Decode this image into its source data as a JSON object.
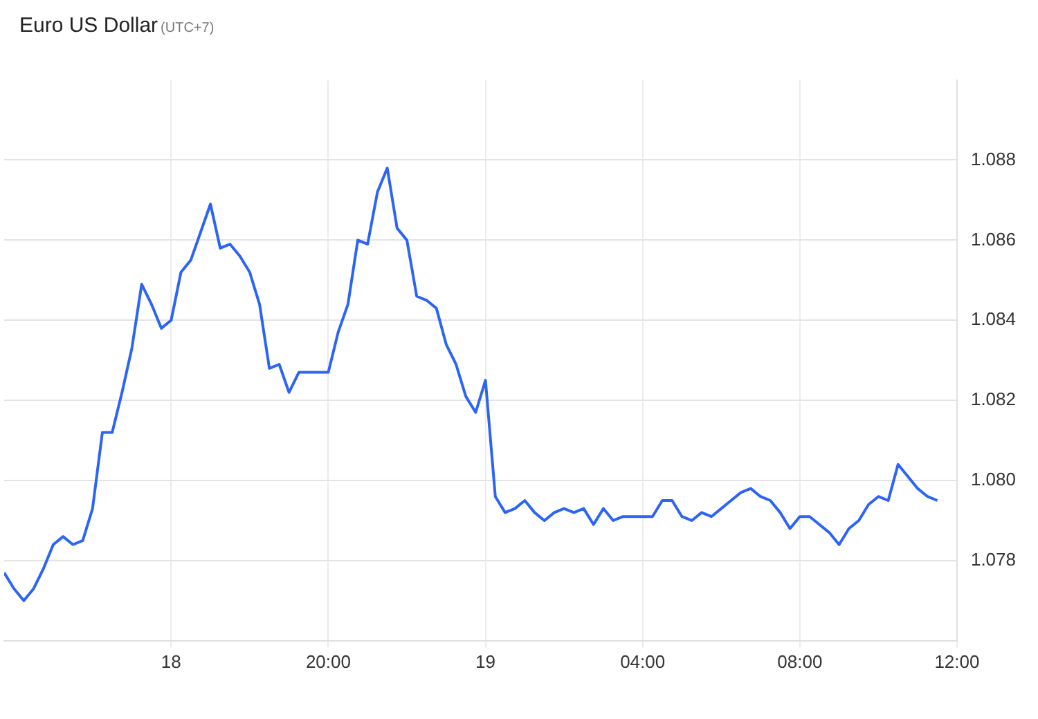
{
  "chart_data": {
    "type": "line",
    "title": "Euro US Dollar",
    "subtitle": "(UTC+7)",
    "categories": [
      null,
      null,
      null,
      null,
      null,
      null,
      null,
      null,
      null,
      null,
      null,
      null,
      null,
      null,
      null,
      null,
      null,
      "18",
      null,
      null,
      null,
      null,
      null,
      null,
      null,
      null,
      null,
      null,
      null,
      null,
      null,
      null,
      null,
      "20:00",
      null,
      null,
      null,
      null,
      null,
      null,
      null,
      null,
      null,
      null,
      null,
      null,
      null,
      null,
      null,
      "19",
      null,
      null,
      null,
      null,
      null,
      null,
      null,
      null,
      null,
      null,
      null,
      null,
      null,
      null,
      null,
      "04:00",
      null,
      null,
      null,
      null,
      null,
      null,
      null,
      null,
      null,
      null,
      null,
      null,
      null,
      null,
      null,
      "08:00",
      null,
      null,
      null,
      null,
      null,
      null,
      null,
      null,
      null,
      null,
      null,
      null,
      null,
      null,
      null,
      "12:00"
    ],
    "series": [
      {
        "color": "#2c64f5",
        "values": [
          1.0777,
          1.0773,
          1.077,
          1.0773,
          1.0778,
          1.0784,
          1.0786,
          1.0784,
          1.0785,
          1.0793,
          1.0812,
          1.0812,
          1.0822,
          1.0833,
          1.0849,
          1.0844,
          1.0838,
          1.084,
          1.0852,
          1.0855,
          1.0862,
          1.0869,
          1.0858,
          1.0859,
          1.0856,
          1.0852,
          1.0844,
          1.0828,
          1.0829,
          1.0822,
          1.0827,
          1.0827,
          1.0827,
          1.0827,
          1.0837,
          1.0844,
          1.086,
          1.0859,
          1.0872,
          1.0878,
          1.0863,
          1.086,
          1.0846,
          1.0845,
          1.0843,
          1.0834,
          1.0829,
          1.0821,
          1.0817,
          1.0825,
          1.0796,
          1.0792,
          1.0793,
          1.0795,
          1.0792,
          1.079,
          1.0792,
          1.0793,
          1.0792,
          1.0793,
          1.0789,
          1.0793,
          1.079,
          1.0791,
          1.0791,
          1.0791,
          1.0791,
          1.0795,
          1.0795,
          1.0791,
          1.079,
          1.0792,
          1.0791,
          1.0793,
          1.0795,
          1.0797,
          1.0798,
          1.0796,
          1.0795,
          1.0792,
          1.0788,
          1.0791,
          1.0791,
          1.0789,
          1.0787,
          1.0784,
          1.0788,
          1.079,
          1.0794,
          1.0796,
          1.0795,
          1.0804,
          1.0801,
          1.0798,
          1.0796,
          1.0795,
          null,
          null
        ]
      }
    ],
    "ylim": [
      1.076,
      1.09
    ],
    "yticks": [
      {
        "value": 1.078,
        "label": "1.078"
      },
      {
        "value": 1.08,
        "label": "1.080"
      },
      {
        "value": 1.082,
        "label": "1.082"
      },
      {
        "value": 1.084,
        "label": "1.084"
      },
      {
        "value": 1.086,
        "label": "1.086"
      },
      {
        "value": 1.088,
        "label": "1.088"
      }
    ],
    "grid": true,
    "marker": "none",
    "line_style": "solid"
  }
}
